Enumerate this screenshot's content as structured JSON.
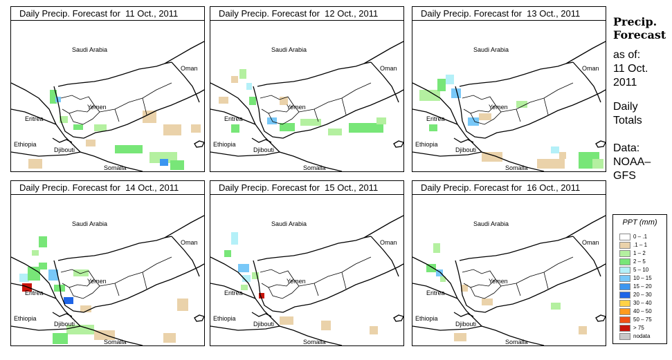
{
  "panels": [
    {
      "title": "Daily Precip. Forecast for  11 Oct., 2011",
      "labels": {
        "saudi": "Saudi Arabia",
        "oman": "Oman",
        "yemen": "Yemen",
        "eritrea": "Eritrea",
        "ethiopia": "Ethiopia",
        "djibouti": "Djibouti",
        "somalia": "Somalia"
      }
    },
    {
      "title": "Daily Precip. Forecast for  12 Oct., 2011",
      "labels": {
        "saudi": "Saudi Arabia",
        "oman": "Oman",
        "yemen": "Yemen",
        "eritrea": "Eritrea",
        "ethiopia": "Ethiopia",
        "djibouti": "Djibouti",
        "somalia": "Somalia"
      }
    },
    {
      "title": "Daily Precip. Forecast for  13 Oct., 2011",
      "labels": {
        "saudi": "Saudi Arabia",
        "oman": "Oman",
        "yemen": "Yemen",
        "eritrea": "Eritrea",
        "ethiopia": "Ethiopia",
        "djibouti": "Djibouti",
        "somalia": "Somalia"
      }
    },
    {
      "title": "Daily Precip. Forecast for  14 Oct., 2011",
      "labels": {
        "saudi": "Saudi Arabia",
        "oman": "Oman",
        "yemen": "Yemen",
        "eritrea": "Eritrea",
        "ethiopia": "Ethiopia",
        "djibouti": "Djibouti",
        "somalia": "Somalia"
      }
    },
    {
      "title": "Daily Precip. Forecast for  15 Oct., 2011",
      "labels": {
        "saudi": "Saudi Arabia",
        "oman": "Oman",
        "yemen": "Yemen",
        "eritrea": "Eritrea",
        "ethiopia": "Ethiopia",
        "djibouti": "Djibouti",
        "somalia": "Somalia"
      }
    },
    {
      "title": "Daily Precip. Forecast for  16 Oct., 2011",
      "labels": {
        "saudi": "Saudi Arabia",
        "oman": "Oman",
        "yemen": "Yemen",
        "eritrea": "Eritrea",
        "ethiopia": "Ethiopia",
        "djibouti": "Djibouti",
        "somalia": "Somalia"
      }
    }
  ],
  "sidebar": {
    "title": "Precip.\nForecast",
    "as_of_label": "as of:",
    "as_of_date": "11 Oct.\n2011",
    "period": "Daily\nTotals",
    "source": "Data:\nNOAA–\nGFS"
  },
  "legend": {
    "title": "PPT (mm)",
    "items": [
      {
        "label": "0 – .1",
        "color": "#ffffff"
      },
      {
        "label": ".1 – 1",
        "color": "#ead2aa"
      },
      {
        "label": "1 – 2",
        "color": "#b4f0a0"
      },
      {
        "label": "2 – 5",
        "color": "#78e678"
      },
      {
        "label": "5 – 10",
        "color": "#b4f0f8"
      },
      {
        "label": "10 – 15",
        "color": "#78c8f8"
      },
      {
        "label": "15 – 20",
        "color": "#3c96f0"
      },
      {
        "label": "20 – 30",
        "color": "#1e64e6"
      },
      {
        "label": "30 – 40",
        "color": "#ffd246"
      },
      {
        "label": "40 – 50",
        "color": "#ff9b1e"
      },
      {
        "label": "50 – 75",
        "color": "#f05014"
      },
      {
        "label": "> 75",
        "color": "#c8140a"
      },
      {
        "label": "nodata",
        "color": "#c8c8c8"
      }
    ]
  }
}
